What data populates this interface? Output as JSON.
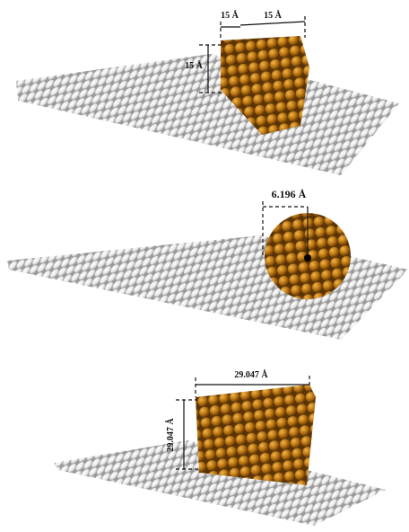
{
  "panels": [
    {
      "dimensions": [
        "15 Å",
        "15 Å",
        "15 Å"
      ]
    },
    {
      "dimensions": [
        "6.196 Å"
      ]
    },
    {
      "dimensions": [
        "29.047 Å",
        "29.047 Å"
      ]
    }
  ]
}
